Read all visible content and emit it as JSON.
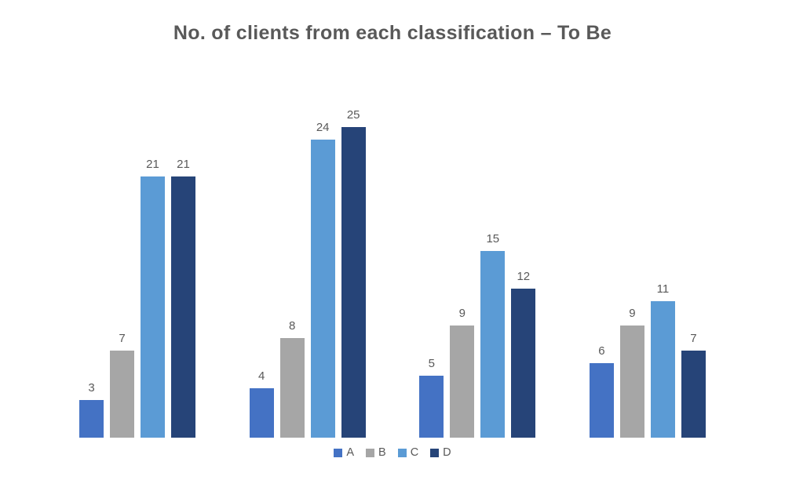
{
  "title": "No. of clients from each classification – To Be",
  "colors": {
    "background": "#FFFFFF",
    "title_text": "#595959",
    "data_label_text": "#595959",
    "legend_text": "#595959"
  },
  "chart_data": {
    "type": "bar",
    "grouped": true,
    "title": "No. of clients from each classification – To Be",
    "categories": [
      "",
      "",
      "",
      ""
    ],
    "series": [
      {
        "name": "A",
        "color": "#4472C4",
        "values": [
          3,
          4,
          5,
          6
        ]
      },
      {
        "name": "B",
        "color": "#A6A6A6",
        "values": [
          7,
          8,
          9,
          9
        ]
      },
      {
        "name": "C",
        "color": "#5B9BD5",
        "values": [
          21,
          24,
          15,
          11
        ]
      },
      {
        "name": "D",
        "color": "#264478",
        "values": [
          21,
          25,
          12,
          7
        ]
      }
    ],
    "ylim": [
      0,
      25
    ],
    "xlabel": "",
    "ylabel": "",
    "axes_visible": false,
    "gridlines": false,
    "data_labels": true,
    "legend_position": "bottom-center"
  }
}
